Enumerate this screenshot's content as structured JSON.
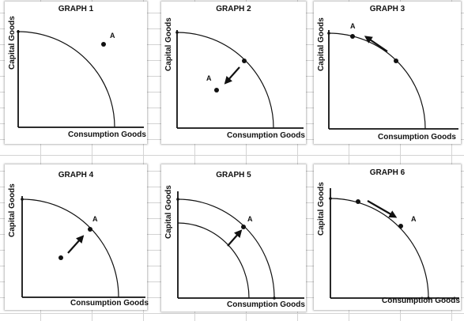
{
  "graphs": [
    {
      "title": "GRAPH 1",
      "ylabel": "Capital Goods",
      "xlabel": "Consumption Goods",
      "point_label": "A"
    },
    {
      "title": "GRAPH 2",
      "ylabel": "Capital Goods",
      "xlabel": "Consumption Goods",
      "point_label": "A"
    },
    {
      "title": "GRAPH 3",
      "ylabel": "Capital Goods",
      "xlabel": "Consumption Goods",
      "point_label": "A"
    },
    {
      "title": "GRAPH 4",
      "ylabel": "Capital Goods",
      "xlabel": "Consumption Goods",
      "point_label": "A"
    },
    {
      "title": "GRAPH 5",
      "ylabel": "Capital Goods",
      "xlabel": "Consumption Goods",
      "point_label": "A"
    },
    {
      "title": "GRAPH 6",
      "ylabel": "Capital Goods",
      "xlabel": "Consumption Goods",
      "point_label": "A"
    }
  ]
}
